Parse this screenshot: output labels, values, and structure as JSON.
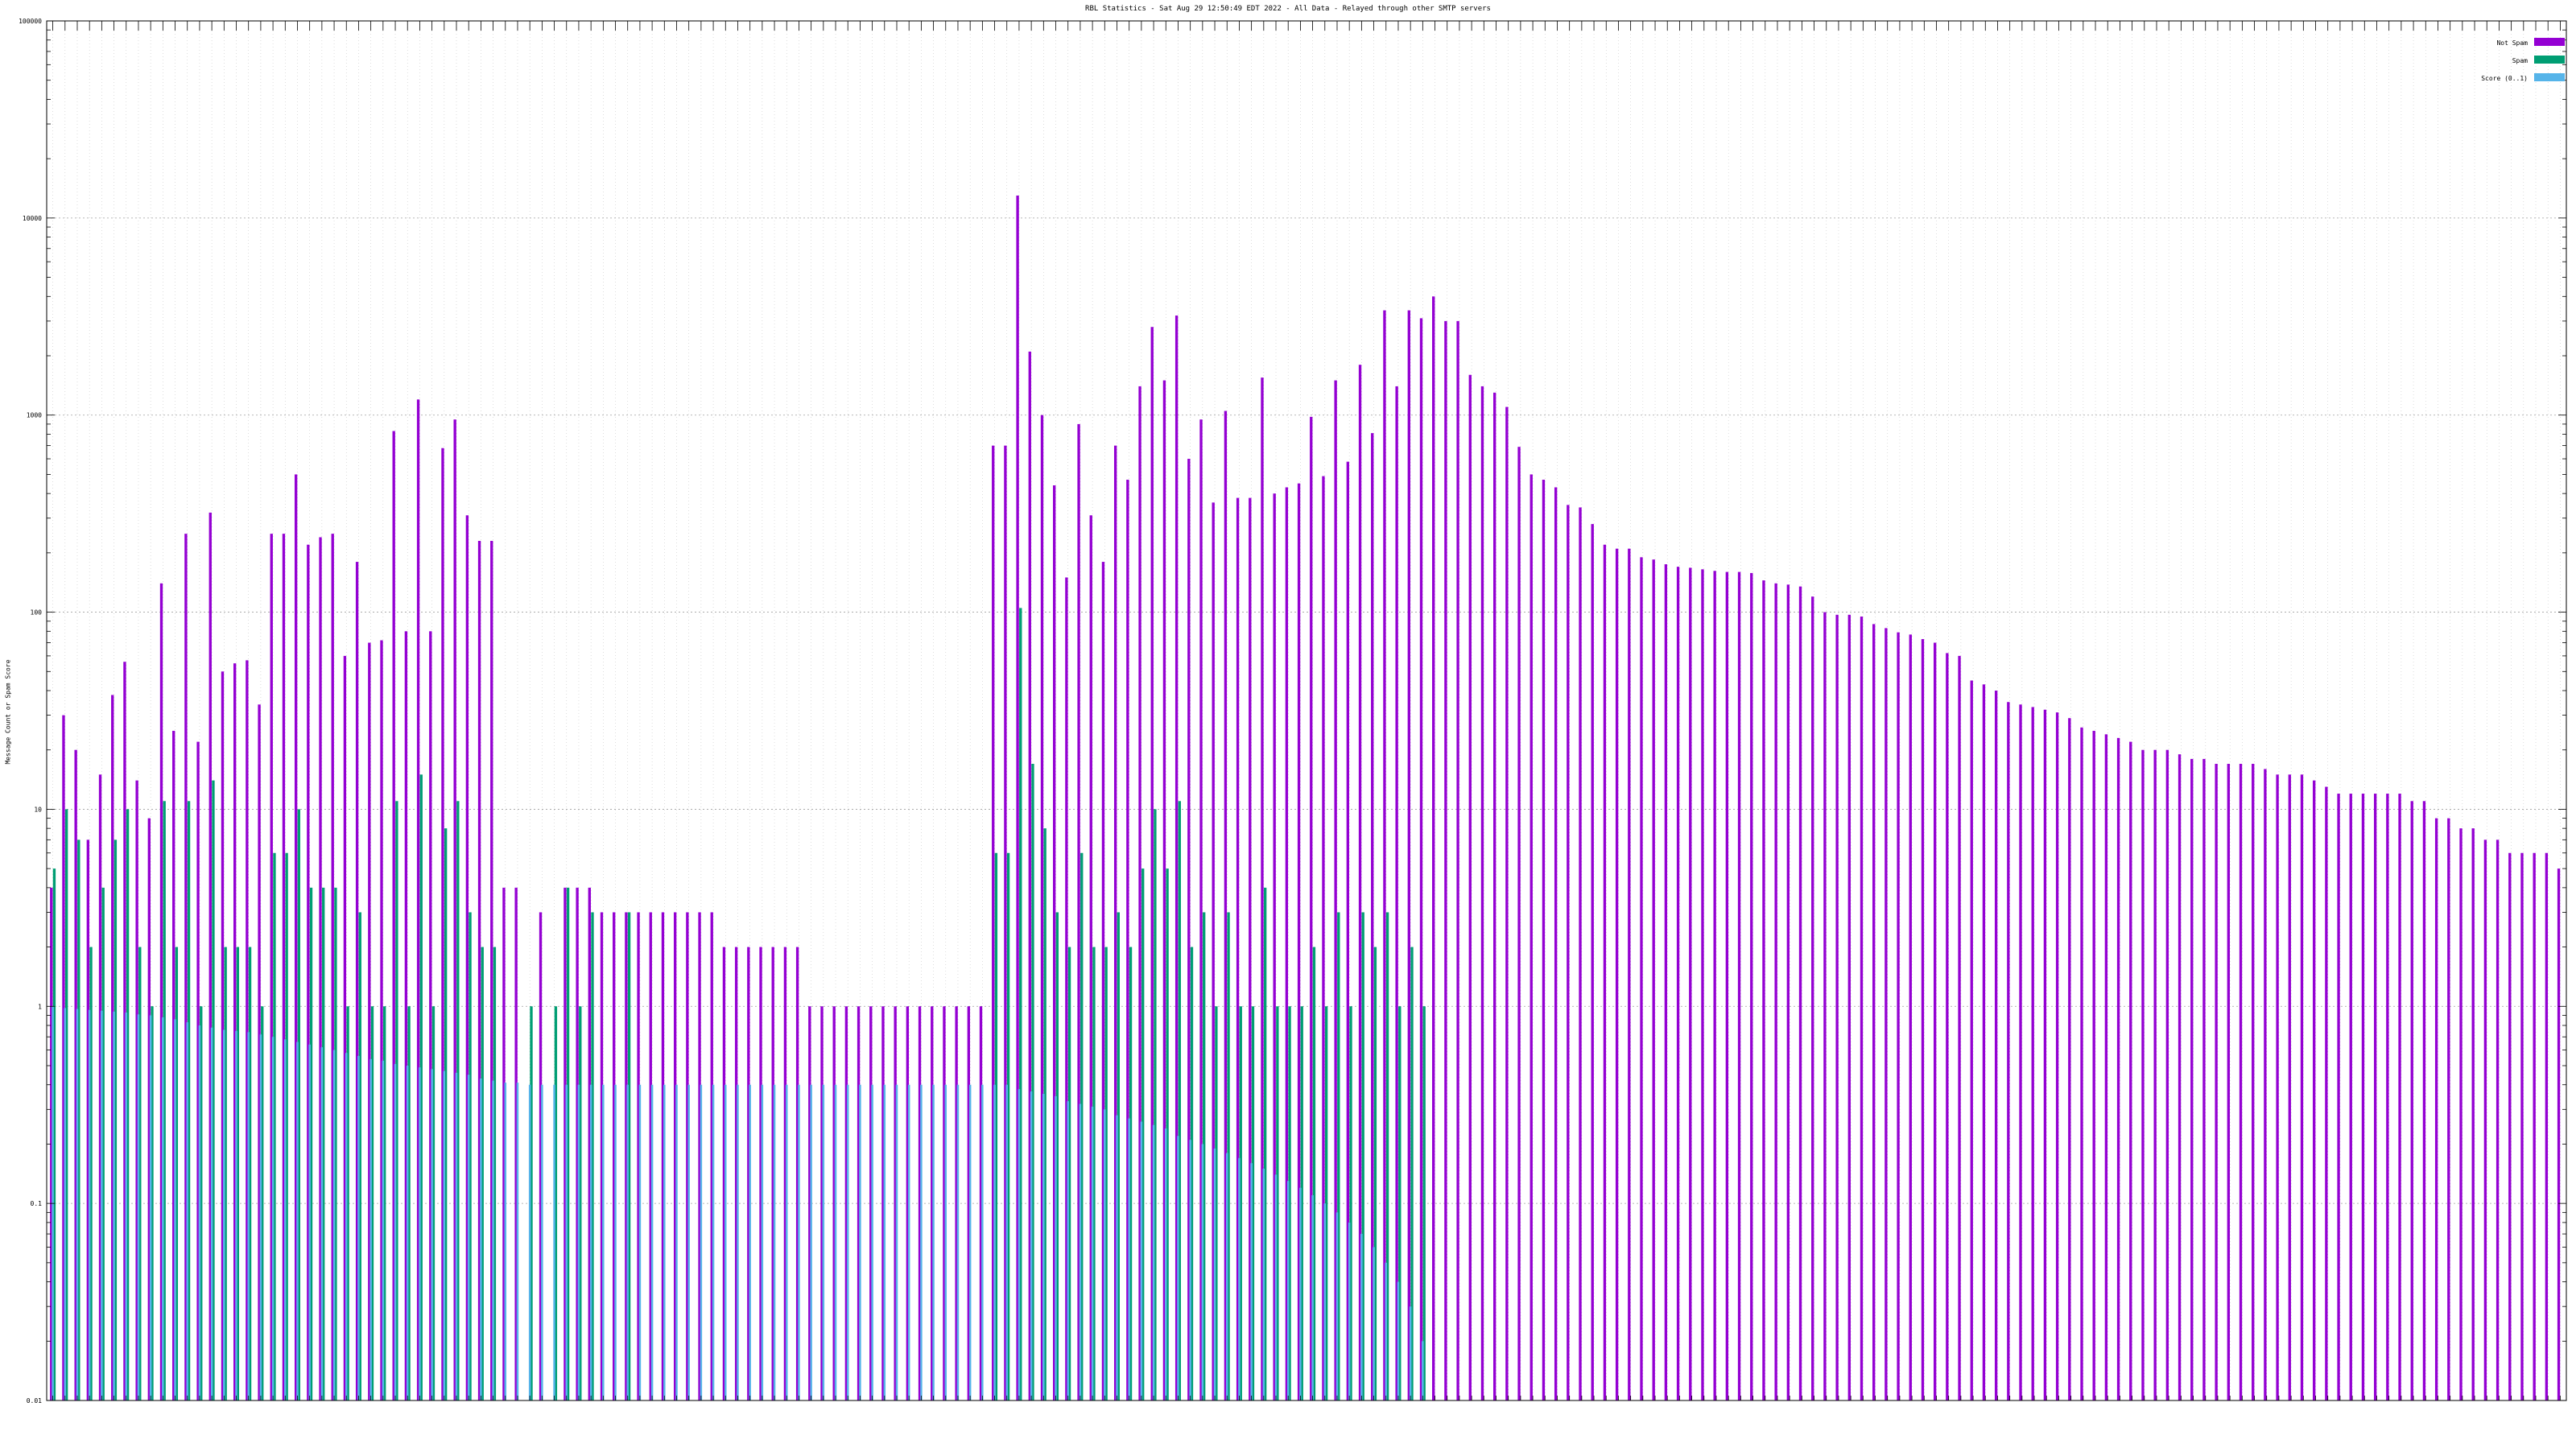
{
  "chart_data": {
    "type": "bar",
    "title": "RBL Statistics - Sat Aug 29 12:50:49 EDT 2022 - All Data - Relayed through other SMTP servers",
    "xlabel": "",
    "ylabel": "Message Count or Spam Score",
    "y_scale": "log",
    "ylim": [
      0.01,
      100000
    ],
    "y_ticks": [
      {
        "value": 0.01,
        "label": "0.01"
      },
      {
        "value": 0.1,
        "label": "0.1"
      },
      {
        "value": 1,
        "label": "1"
      },
      {
        "value": 10,
        "label": "10"
      },
      {
        "value": 100,
        "label": "100"
      },
      {
        "value": 1000,
        "label": "1000"
      },
      {
        "value": 10000,
        "label": "10000"
      },
      {
        "value": 100000,
        "label": "100000"
      }
    ],
    "grid": true,
    "legend_position": "top-right",
    "categories_note": "Category tick labels along the x axis are too small to be legible in the source image.",
    "series": [
      {
        "name": "Not Spam",
        "color": "#9400d3",
        "values": [
          4,
          30,
          20,
          7,
          15,
          38,
          56,
          14,
          9,
          140,
          25,
          250,
          22,
          320,
          50,
          55,
          57,
          34,
          250,
          250,
          500,
          220,
          240,
          250,
          60,
          180,
          70,
          72,
          830,
          80,
          1200,
          80,
          680,
          950,
          310,
          230,
          230,
          4,
          4,
          0,
          3,
          0,
          4,
          4,
          4,
          3,
          3,
          3,
          3,
          3,
          3,
          3,
          3,
          3,
          3,
          2,
          2,
          2,
          2,
          2,
          2,
          2,
          1,
          1,
          1,
          1,
          1,
          1,
          1,
          1,
          1,
          1,
          1,
          1,
          1,
          1,
          1,
          700,
          700,
          13000,
          2100,
          1000,
          440,
          150,
          900,
          310,
          180,
          700,
          470,
          1400,
          2800,
          1500,
          3200,
          600,
          950,
          360,
          1050,
          380,
          380,
          1550,
          400,
          430,
          450,
          980,
          490,
          1500,
          580,
          1800,
          810,
          3400,
          1400,
          3400,
          3100,
          4000,
          3000,
          3000,
          1600,
          1400,
          1300,
          1100,
          690,
          500,
          470,
          430,
          350,
          340,
          280,
          220,
          210,
          210,
          190,
          185,
          175,
          170,
          168,
          165,
          162,
          160,
          160,
          158,
          145,
          140,
          138,
          135,
          120,
          100,
          97,
          97,
          95,
          87,
          83,
          79,
          77,
          73,
          70,
          62,
          60,
          45,
          43,
          40,
          35,
          34,
          33,
          32,
          31,
          29,
          26,
          25,
          24,
          23,
          22,
          20,
          20,
          20,
          19,
          18,
          18,
          17,
          17,
          17,
          17,
          16,
          15,
          15,
          15,
          14,
          13,
          12,
          12,
          12,
          12,
          12,
          12,
          11,
          11,
          9,
          9,
          8,
          8,
          7,
          7,
          6,
          6,
          6,
          6,
          5
        ]
      },
      {
        "name": "Spam",
        "color": "#009e73",
        "values": [
          5,
          10,
          7,
          2,
          4,
          7,
          10,
          2,
          1,
          11,
          2,
          11,
          1,
          14,
          2,
          2,
          2,
          1,
          6,
          6,
          10,
          4,
          4,
          4,
          1,
          3,
          1,
          1,
          11,
          1,
          15,
          1,
          8,
          11,
          3,
          2,
          2,
          0,
          0,
          1,
          0,
          1,
          4,
          1,
          3,
          0,
          0,
          3,
          0,
          0,
          0,
          0,
          0,
          0,
          0,
          0,
          0,
          0,
          0,
          0,
          0,
          0,
          0,
          0,
          0,
          0,
          0,
          0,
          0,
          0,
          0,
          0,
          0,
          0,
          0,
          0,
          0,
          6,
          6,
          105,
          17,
          8,
          3,
          2,
          6,
          2,
          2,
          3,
          2,
          5,
          10,
          5,
          11,
          2,
          3,
          1,
          3,
          1,
          1,
          4,
          1,
          1,
          1,
          2,
          1,
          3,
          1,
          3,
          2,
          3,
          1,
          2,
          1,
          0,
          0,
          0,
          0,
          0,
          0,
          0,
          0,
          0,
          0,
          0,
          0,
          0,
          0,
          0,
          0,
          0,
          0,
          0,
          0,
          0,
          0,
          0,
          0,
          0,
          0,
          0,
          0,
          0,
          0,
          0,
          0,
          0,
          0,
          0,
          0,
          0,
          0,
          0,
          0,
          0,
          0,
          0,
          0,
          0,
          0,
          0,
          0,
          0,
          0,
          0,
          0,
          0,
          0,
          0,
          0,
          0,
          0,
          0,
          0,
          0,
          0,
          0,
          0,
          0,
          0,
          0,
          0,
          0,
          0,
          0,
          0,
          0,
          0,
          0,
          0,
          0,
          0,
          0,
          0,
          0,
          0,
          0,
          0,
          0,
          0,
          0,
          0,
          0,
          0,
          0,
          0,
          0,
          0,
          0,
          0,
          0
        ]
      },
      {
        "name": "Score (0..1)",
        "color": "#56b4e9",
        "values": [
          1.0,
          0.98,
          0.97,
          0.96,
          0.95,
          0.94,
          0.93,
          0.91,
          0.9,
          0.88,
          0.86,
          0.83,
          0.8,
          0.78,
          0.76,
          0.75,
          0.74,
          0.72,
          0.7,
          0.68,
          0.66,
          0.64,
          0.62,
          0.6,
          0.58,
          0.56,
          0.54,
          0.53,
          0.51,
          0.5,
          0.49,
          0.48,
          0.47,
          0.46,
          0.45,
          0.43,
          0.42,
          0.41,
          0.41,
          0.4,
          0.4,
          0.4,
          0.4,
          0.4,
          0.4,
          0.4,
          0.4,
          0.4,
          0.4,
          0.4,
          0.4,
          0.4,
          0.4,
          0.4,
          0.4,
          0.4,
          0.4,
          0.4,
          0.4,
          0.4,
          0.4,
          0.4,
          0.4,
          0.4,
          0.4,
          0.4,
          0.4,
          0.4,
          0.4,
          0.4,
          0.4,
          0.4,
          0.4,
          0.4,
          0.4,
          0.4,
          0.4,
          0.4,
          0.4,
          0.38,
          0.37,
          0.36,
          0.35,
          0.33,
          0.32,
          0.31,
          0.3,
          0.28,
          0.27,
          0.26,
          0.25,
          0.24,
          0.22,
          0.21,
          0.2,
          0.19,
          0.18,
          0.17,
          0.16,
          0.15,
          0.14,
          0.13,
          0.12,
          0.11,
          0.1,
          0.09,
          0.08,
          0.07,
          0.06,
          0.05,
          0.04,
          0.03,
          0.02,
          0,
          0,
          0,
          0,
          0,
          0,
          0,
          0,
          0,
          0,
          0,
          0,
          0,
          0,
          0,
          0,
          0,
          0,
          0,
          0,
          0,
          0,
          0,
          0,
          0,
          0,
          0,
          0,
          0,
          0,
          0,
          0,
          0,
          0,
          0,
          0,
          0,
          0,
          0,
          0,
          0,
          0,
          0,
          0,
          0,
          0,
          0,
          0,
          0,
          0,
          0,
          0,
          0,
          0,
          0,
          0,
          0,
          0,
          0,
          0,
          0,
          0,
          0,
          0,
          0,
          0,
          0,
          0,
          0,
          0,
          0,
          0,
          0,
          0,
          0,
          0,
          0,
          0,
          0,
          0,
          0,
          0,
          0,
          0,
          0,
          0,
          0,
          0,
          0,
          0,
          0,
          0,
          0,
          0,
          0,
          0,
          0,
          0,
          0,
          0,
          0,
          0,
          0,
          0
        ]
      }
    ]
  }
}
